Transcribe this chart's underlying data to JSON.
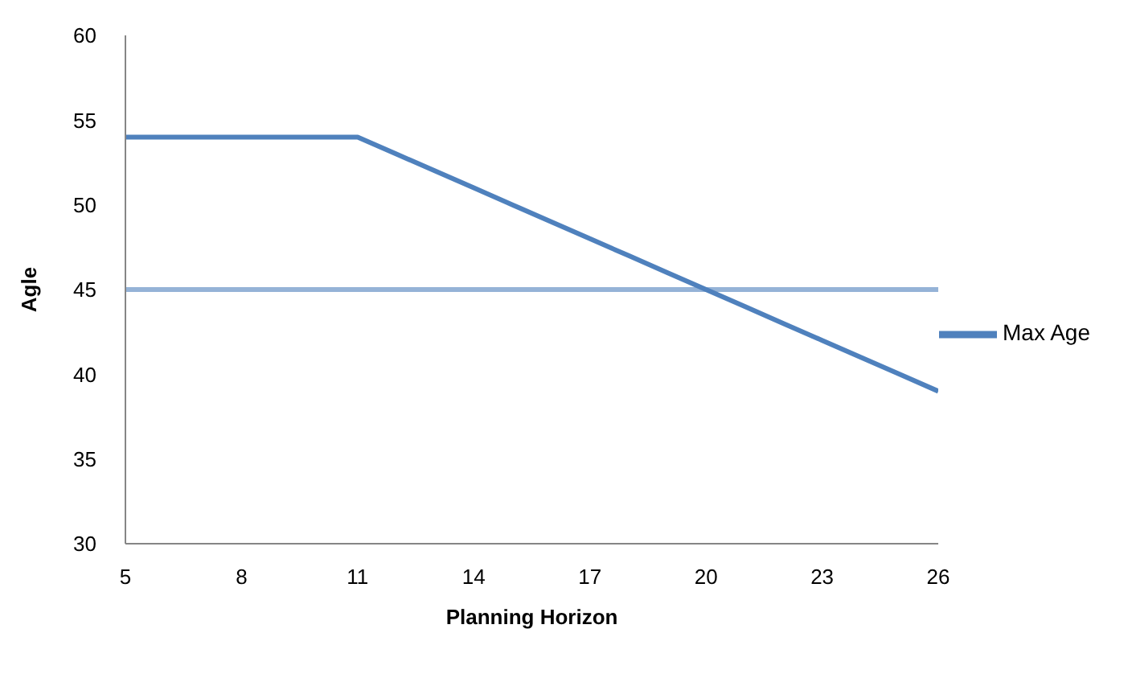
{
  "chart_data": {
    "type": "line",
    "xlabel": "Planning Horizon",
    "ylabel": "Agle",
    "x": [
      5,
      11,
      12,
      13,
      14,
      15,
      16,
      17,
      18,
      19,
      20,
      21,
      22,
      23,
      24,
      25,
      26
    ],
    "series": [
      {
        "name": "Max Age",
        "color": "#4f81bd",
        "values": [
          54,
          54,
          53,
          52,
          51,
          50,
          49,
          48,
          47,
          46,
          45,
          44,
          43,
          42,
          41,
          40,
          39
        ]
      }
    ],
    "ref_lines": [
      {
        "axis": "y",
        "value": 45,
        "color": "#95b3d7"
      }
    ],
    "xlim": [
      5,
      26
    ],
    "xticks": [
      5,
      8,
      11,
      14,
      17,
      20,
      23,
      26
    ],
    "ylim": [
      30,
      60
    ],
    "yticks": [
      30,
      35,
      40,
      45,
      50,
      55,
      60
    ],
    "grid": false,
    "legend": "right",
    "marker": "none",
    "line_style": "solid"
  }
}
